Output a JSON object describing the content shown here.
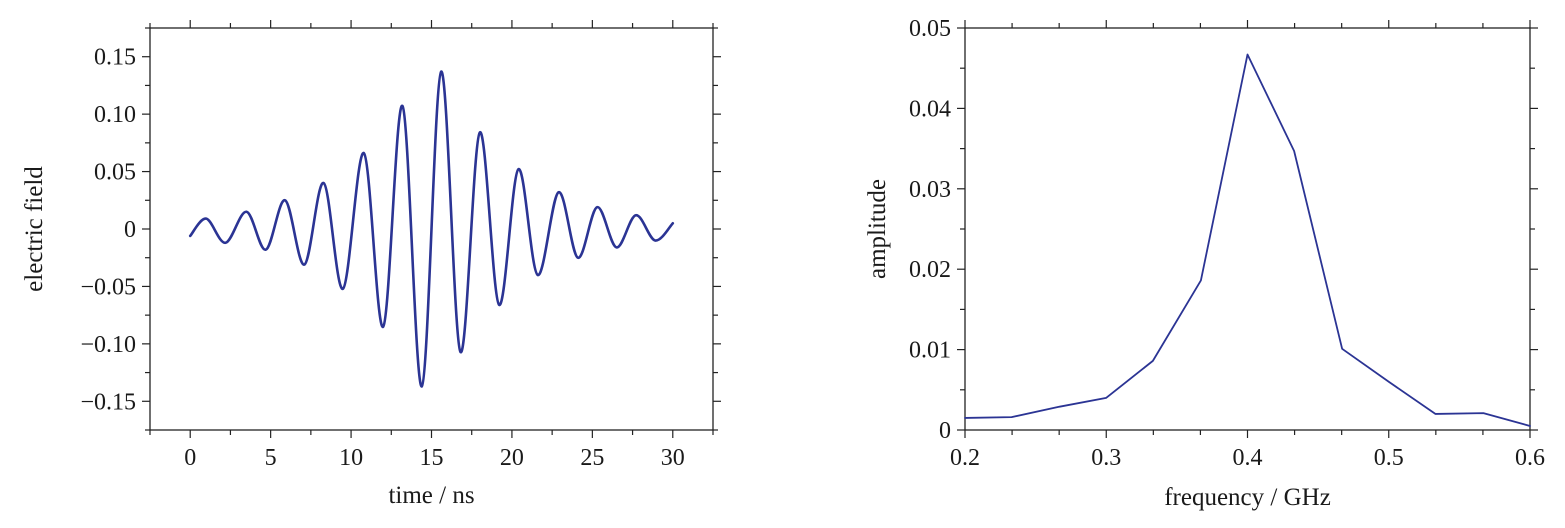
{
  "chart_data": [
    {
      "type": "line",
      "xlabel": "time / ns",
      "ylabel": "electric field",
      "xlim": [
        -2.5,
        32.5
      ],
      "ylim": [
        -0.175,
        0.175
      ],
      "x_ticks": [
        0,
        5,
        10,
        15,
        20,
        25,
        30
      ],
      "x_tick_labels": [
        "0",
        "5",
        "10",
        "15",
        "20",
        "25",
        "30"
      ],
      "y_ticks": [
        0.15,
        0.1,
        0.05,
        0,
        -0.05,
        -0.1,
        -0.15
      ],
      "y_tick_labels": [
        "0.15",
        "0.10",
        "0.05",
        "0",
        "−0.05",
        "−0.10",
        "−0.15"
      ],
      "line_color": "#2b3494",
      "grid": false,
      "series": [
        {
          "x": [
            0,
            1.0,
            2.2,
            3.5,
            4.7,
            5.9,
            7.1,
            8.3,
            9.5,
            10.8,
            12.0,
            13.2,
            14.4,
            15.6,
            16.8,
            18.0,
            19.2,
            20.4,
            21.6,
            22.9,
            24.1,
            25.3,
            26.5,
            27.7,
            28.9,
            30.0
          ],
          "y": [
            -0.006,
            0.009,
            -0.012,
            0.015,
            -0.018,
            0.025,
            -0.031,
            0.04,
            -0.052,
            0.066,
            -0.085,
            0.107,
            -0.137,
            0.137,
            -0.107,
            0.084,
            -0.066,
            0.052,
            -0.04,
            0.032,
            -0.025,
            0.019,
            -0.016,
            0.012,
            -0.01,
            0.005
          ]
        }
      ]
    },
    {
      "type": "line",
      "xlabel": "frequency / GHz",
      "ylabel": "amplitude",
      "xlim": [
        0.2,
        0.6
      ],
      "ylim": [
        0,
        0.05
      ],
      "x_ticks": [
        0.2,
        0.3,
        0.4,
        0.5,
        0.6
      ],
      "x_tick_labels": [
        "0.2",
        "0.3",
        "0.4",
        "0.5",
        "0.6"
      ],
      "y_ticks": [
        0,
        0.01,
        0.02,
        0.03,
        0.04,
        0.05
      ],
      "y_tick_labels": [
        "0",
        "0.01",
        "0.02",
        "0.03",
        "0.04",
        "0.05"
      ],
      "line_color": "#2b3494",
      "grid": false,
      "series": [
        {
          "x": [
            0.2,
            0.233,
            0.267,
            0.3,
            0.333,
            0.367,
            0.4,
            0.433,
            0.467,
            0.5,
            0.533,
            0.567,
            0.6
          ],
          "y": [
            0.0015,
            0.0016,
            0.0029,
            0.004,
            0.0086,
            0.0186,
            0.0467,
            0.0347,
            0.0101,
            0.006,
            0.002,
            0.0021,
            0.0005
          ]
        }
      ]
    }
  ]
}
